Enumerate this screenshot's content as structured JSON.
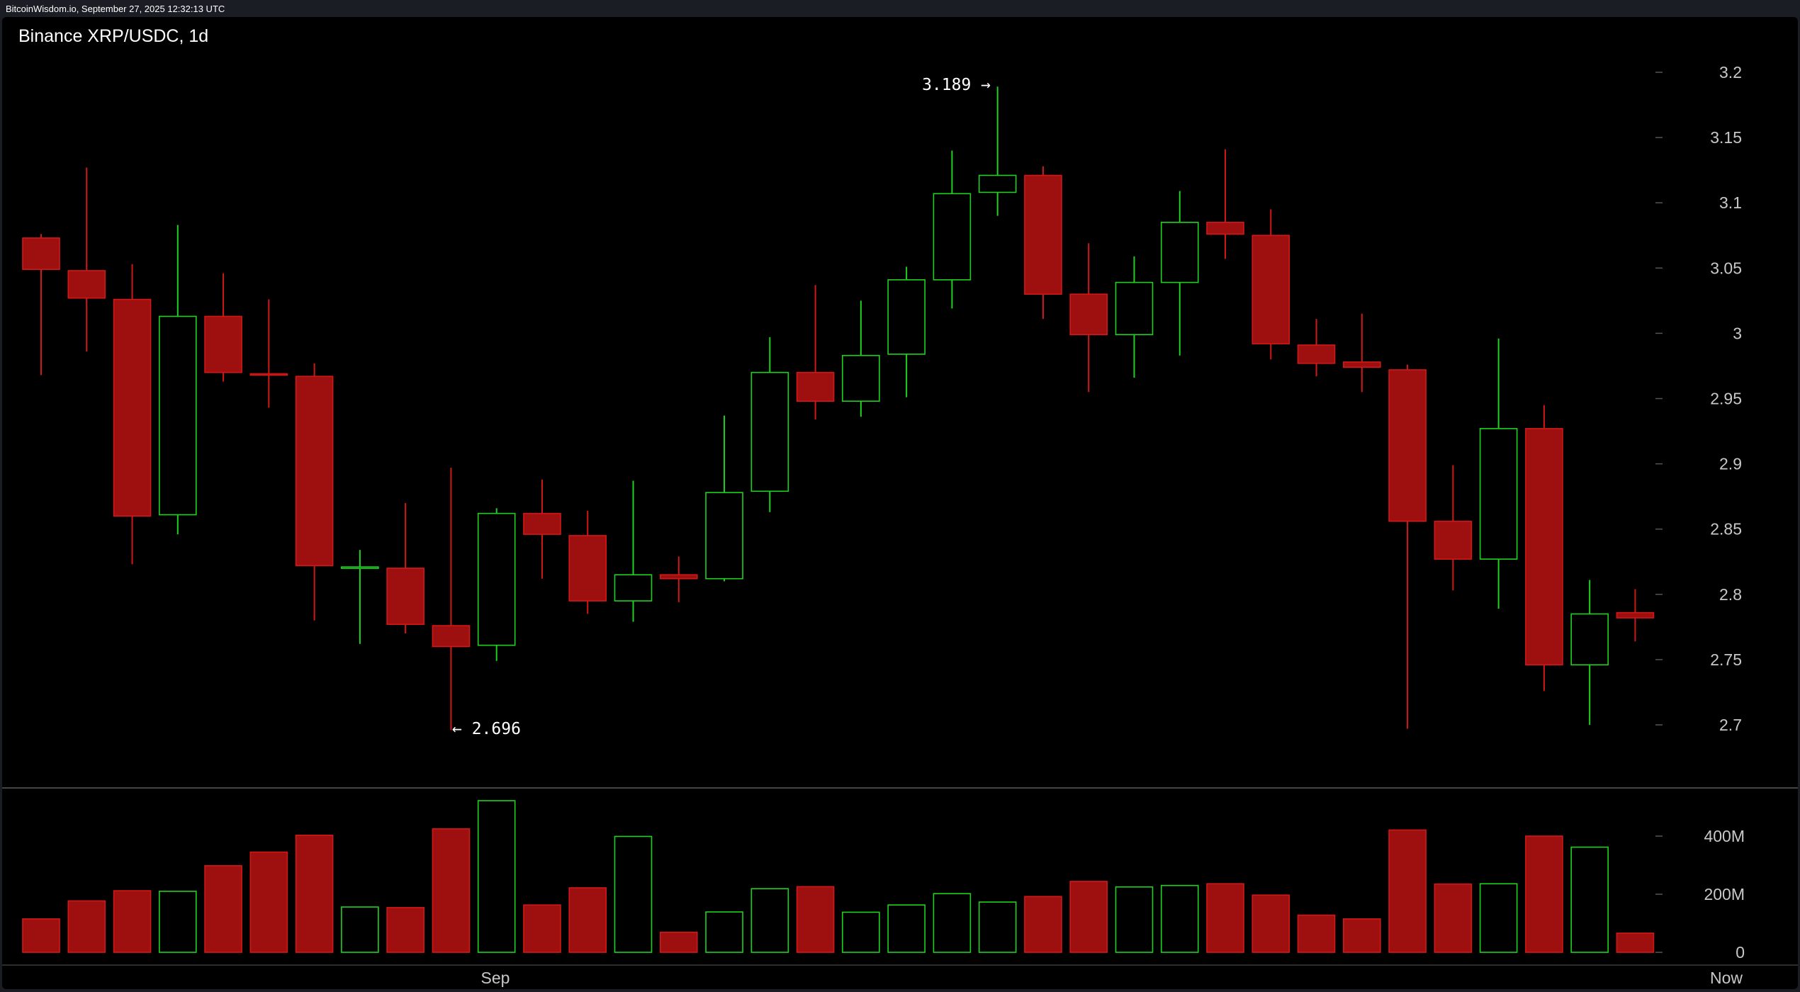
{
  "header": {
    "source": "BitcoinWisdom.io, September 27, 2025 12:32:13 UTC"
  },
  "chart": {
    "title": "Binance XRP/USDC, 1d"
  },
  "colors": {
    "up": "#1fd11f",
    "down": "#9e1010",
    "down_border": "#d01818",
    "background": "#000000",
    "axis_text": "#c8c8c8"
  },
  "chart_data": {
    "type": "candlestick",
    "title": "Binance XRP/USDC, 1d",
    "price_axis": {
      "ticks": [
        "3.2",
        "3.15",
        "3.1",
        "3.05",
        "3",
        "2.95",
        "2.9",
        "2.85",
        "2.8",
        "2.75",
        "2.7"
      ],
      "range": [
        2.66,
        3.245
      ]
    },
    "volume_axis": {
      "ticks": [
        "400M",
        "200M",
        "0"
      ],
      "range_millions": [
        0,
        540
      ]
    },
    "x_labels": [
      "Sep",
      "Now"
    ],
    "annotations": {
      "high": "3.189 →",
      "low": "← 2.696"
    },
    "candles": [
      {
        "o": 3.073,
        "h": 3.076,
        "l": 2.968,
        "c": 3.049,
        "v": 115
      },
      {
        "o": 3.048,
        "h": 3.127,
        "l": 2.986,
        "c": 3.027,
        "v": 177
      },
      {
        "o": 3.026,
        "h": 3.053,
        "l": 2.823,
        "c": 2.86,
        "v": 212
      },
      {
        "o": 2.861,
        "h": 3.083,
        "l": 2.846,
        "c": 3.013,
        "v": 210
      },
      {
        "o": 3.013,
        "h": 3.046,
        "l": 2.963,
        "c": 2.97,
        "v": 298
      },
      {
        "o": 2.969,
        "h": 3.026,
        "l": 2.943,
        "c": 2.968,
        "v": 345
      },
      {
        "o": 2.967,
        "h": 2.977,
        "l": 2.78,
        "c": 2.822,
        "v": 403
      },
      {
        "o": 2.821,
        "h": 2.834,
        "l": 2.762,
        "c": 2.821,
        "v": 156
      },
      {
        "o": 2.82,
        "h": 2.87,
        "l": 2.77,
        "c": 2.777,
        "v": 154
      },
      {
        "o": 2.776,
        "h": 2.897,
        "l": 2.696,
        "c": 2.76,
        "v": 425
      },
      {
        "o": 2.761,
        "h": 2.866,
        "l": 2.749,
        "c": 2.862,
        "v": 522
      },
      {
        "o": 2.862,
        "h": 2.888,
        "l": 2.812,
        "c": 2.846,
        "v": 163
      },
      {
        "o": 2.845,
        "h": 2.864,
        "l": 2.785,
        "c": 2.795,
        "v": 222
      },
      {
        "o": 2.795,
        "h": 2.887,
        "l": 2.779,
        "c": 2.815,
        "v": 399
      },
      {
        "o": 2.815,
        "h": 2.829,
        "l": 2.794,
        "c": 2.812,
        "v": 69
      },
      {
        "o": 2.812,
        "h": 2.937,
        "l": 2.81,
        "c": 2.878,
        "v": 139
      },
      {
        "o": 2.879,
        "h": 2.997,
        "l": 2.863,
        "c": 2.97,
        "v": 219
      },
      {
        "o": 2.97,
        "h": 3.037,
        "l": 2.934,
        "c": 2.948,
        "v": 226
      },
      {
        "o": 2.948,
        "h": 3.025,
        "l": 2.936,
        "c": 2.983,
        "v": 138
      },
      {
        "o": 2.984,
        "h": 3.051,
        "l": 2.951,
        "c": 3.041,
        "v": 163
      },
      {
        "o": 3.041,
        "h": 3.14,
        "l": 3.019,
        "c": 3.107,
        "v": 202
      },
      {
        "o": 3.108,
        "h": 3.189,
        "l": 3.09,
        "c": 3.121,
        "v": 173
      },
      {
        "o": 3.121,
        "h": 3.128,
        "l": 3.011,
        "c": 3.03,
        "v": 192
      },
      {
        "o": 3.03,
        "h": 3.069,
        "l": 2.955,
        "c": 2.999,
        "v": 244
      },
      {
        "o": 2.999,
        "h": 3.059,
        "l": 2.966,
        "c": 3.039,
        "v": 225
      },
      {
        "o": 3.039,
        "h": 3.109,
        "l": 2.983,
        "c": 3.085,
        "v": 230
      },
      {
        "o": 3.085,
        "h": 3.141,
        "l": 3.057,
        "c": 3.076,
        "v": 236
      },
      {
        "o": 3.075,
        "h": 3.095,
        "l": 2.98,
        "c": 2.992,
        "v": 197
      },
      {
        "o": 2.991,
        "h": 3.011,
        "l": 2.967,
        "c": 2.977,
        "v": 128
      },
      {
        "o": 2.978,
        "h": 3.015,
        "l": 2.955,
        "c": 2.974,
        "v": 115
      },
      {
        "o": 2.972,
        "h": 2.976,
        "l": 2.697,
        "c": 2.856,
        "v": 421
      },
      {
        "o": 2.856,
        "h": 2.899,
        "l": 2.803,
        "c": 2.827,
        "v": 235
      },
      {
        "o": 2.827,
        "h": 2.996,
        "l": 2.789,
        "c": 2.927,
        "v": 236
      },
      {
        "o": 2.927,
        "h": 2.945,
        "l": 2.726,
        "c": 2.746,
        "v": 400
      },
      {
        "o": 2.746,
        "h": 2.811,
        "l": 2.7,
        "c": 2.785,
        "v": 362
      },
      {
        "o": 2.786,
        "h": 2.804,
        "l": 2.764,
        "c": 2.782,
        "v": 66
      }
    ]
  }
}
